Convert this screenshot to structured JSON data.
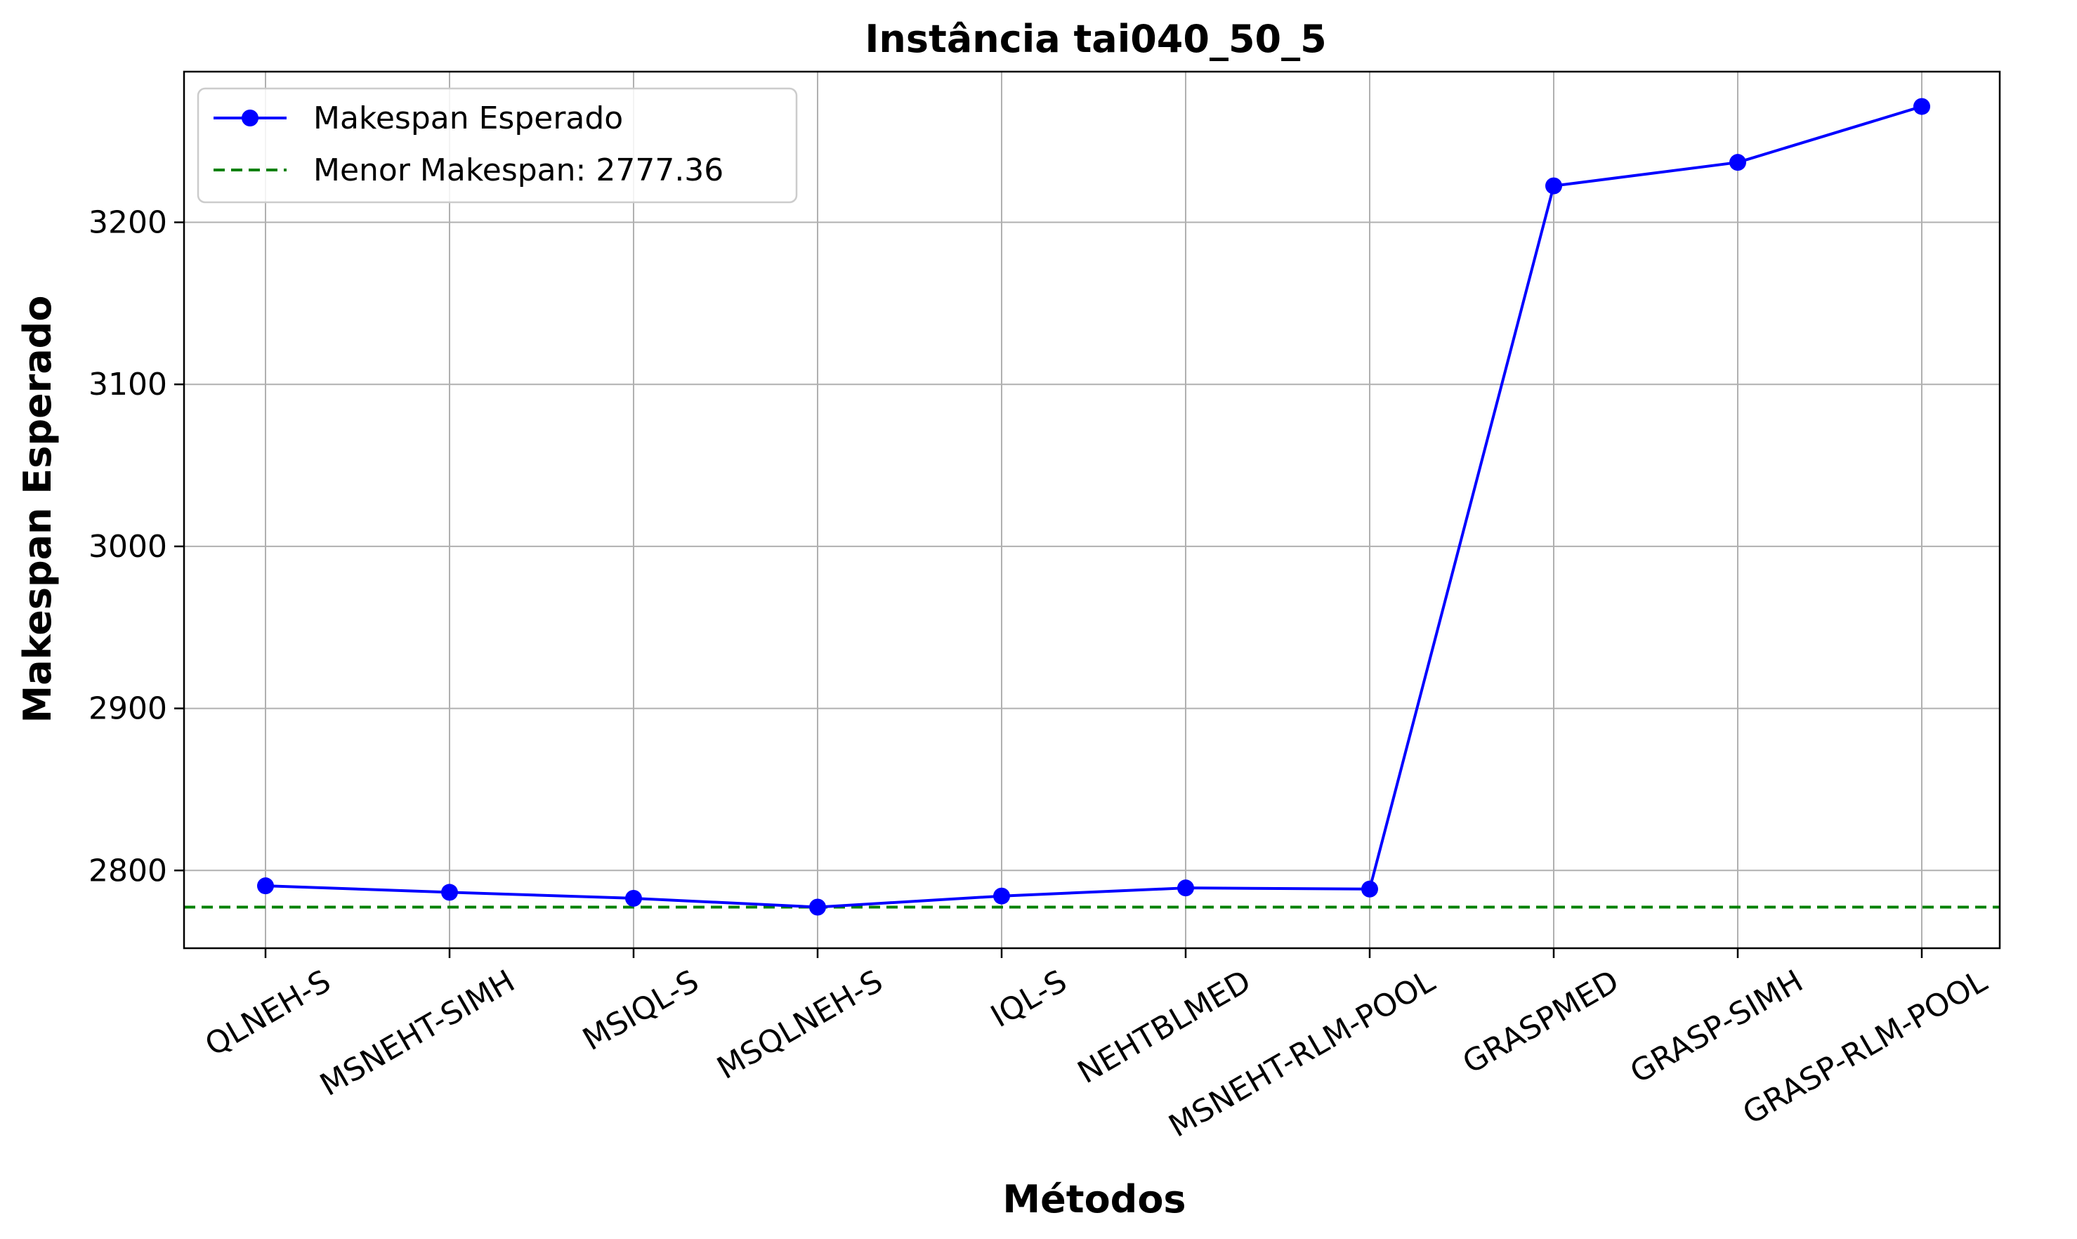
{
  "chart_data": {
    "type": "line",
    "title": "Instância tai040_50_5",
    "xlabel": "Métodos",
    "ylabel": "Makespan Esperado",
    "categories": [
      "QLNEH-S",
      "MSNEHT-SIMH",
      "MSIQL-S",
      "MSQLNEH-S",
      "IQL-S",
      "NEHTBLMED",
      "MSNEHT-RLM-POOL",
      "GRASPMED",
      "GRASP-SIMH",
      "GRASP-RLM-POOL"
    ],
    "series": [
      {
        "name": "Makespan Esperado",
        "color": "#0000ff",
        "marker": "circle",
        "values": [
          2790.5,
          2786.5,
          2782.8,
          2777.36,
          2784.2,
          2789.2,
          2788.5,
          3222.5,
          3237.0,
          3271.5
        ]
      }
    ],
    "reference_line": {
      "name": "Menor Makespan: 2777.36",
      "value": 2777.36,
      "color": "#008000",
      "style": "dashed"
    },
    "ylim": [
      2752,
      3293
    ],
    "yticks": [
      2800,
      2900,
      3000,
      3100,
      3200
    ],
    "grid": true,
    "legend_position": "top-left"
  }
}
